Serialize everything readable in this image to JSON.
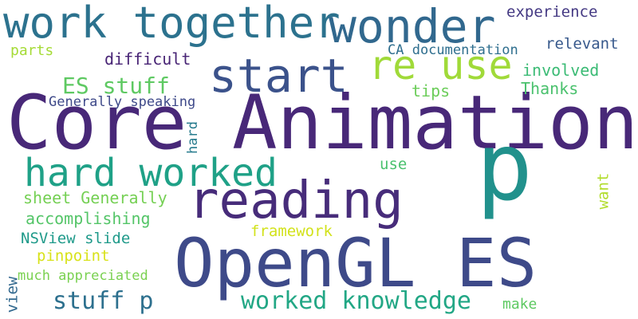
{
  "words": [
    {
      "text": "Core Animation",
      "color": "#482878"
    },
    {
      "text": "p",
      "color": "#21918c"
    },
    {
      "text": "OpenGL ES",
      "color": "#3e4a89"
    },
    {
      "text": "reading",
      "color": "#472c7a"
    },
    {
      "text": "work together",
      "color": "#2c728e"
    },
    {
      "text": "wonder",
      "color": "#31688e"
    },
    {
      "text": "start",
      "color": "#3b528b"
    },
    {
      "text": "re use",
      "color": "#a0da39"
    },
    {
      "text": "hard worked",
      "color": "#1fa187"
    },
    {
      "text": "worked knowledge",
      "color": "#22a785"
    },
    {
      "text": "stuff p",
      "color": "#2d708e"
    },
    {
      "text": "ES stuff",
      "color": "#5ec962"
    },
    {
      "text": "experience",
      "color": "#443983"
    },
    {
      "text": "relevant",
      "color": "#38598c"
    },
    {
      "text": "CA documentation",
      "color": "#2e6e8e"
    },
    {
      "text": "difficult",
      "color": "#482475"
    },
    {
      "text": "parts",
      "color": "#a5db36"
    },
    {
      "text": "involved",
      "color": "#3bbb75"
    },
    {
      "text": "tips",
      "color": "#6ccd5a"
    },
    {
      "text": "Thanks",
      "color": "#4ac16d"
    },
    {
      "text": "Generally speaking",
      "color": "#3e4989"
    },
    {
      "text": "hard",
      "color": "#287c8e"
    },
    {
      "text": "use",
      "color": "#4ac16d"
    },
    {
      "text": "sheet Generally",
      "color": "#75d054"
    },
    {
      "text": "want",
      "color": "#b2dd2d"
    },
    {
      "text": "accomplishing",
      "color": "#54c568"
    },
    {
      "text": "framework",
      "color": "#d2e21b"
    },
    {
      "text": "NSView slide",
      "color": "#1f9a8a"
    },
    {
      "text": "pinpoint",
      "color": "#d8e219"
    },
    {
      "text": "much appreciated",
      "color": "#7ad151"
    },
    {
      "text": "view",
      "color": "#31688e"
    },
    {
      "text": "make",
      "color": "#5ec962"
    }
  ]
}
